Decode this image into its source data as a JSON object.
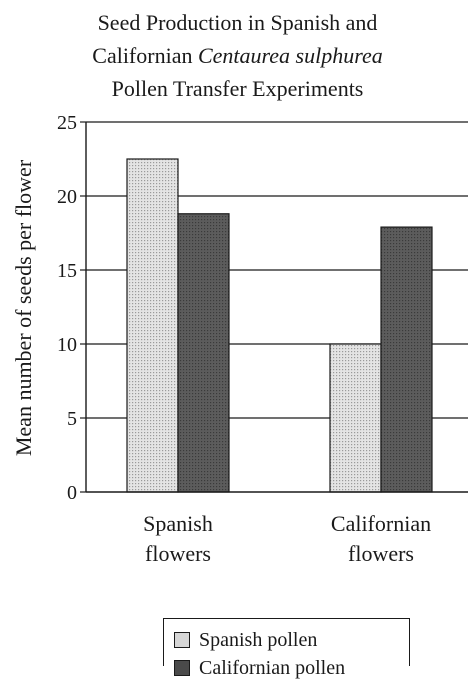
{
  "title": {
    "line1": "Seed Production in Spanish and",
    "line2_prefix": "Californian ",
    "line2_italic": "Centaurea sulphurea",
    "line3": "Pollen Transfer Experiments"
  },
  "chart_data": {
    "type": "bar",
    "title": "Seed Production in Spanish and Californian Centaurea sulphurea Pollen Transfer Experiments",
    "xlabel": "",
    "ylabel": "Mean number of seeds per flower",
    "categories": [
      [
        "Spanish",
        "flowers"
      ],
      [
        "Californian",
        "flowers"
      ]
    ],
    "series": [
      {
        "name": "Spanish pollen",
        "values": [
          22.5,
          10
        ],
        "color": "#d4d4d4"
      },
      {
        "name": "Californian pollen",
        "values": [
          18.8,
          17.9
        ],
        "color": "#5a5a5a"
      }
    ],
    "ylim": [
      0,
      25
    ],
    "yticks": [
      0,
      5,
      10,
      15,
      20,
      25
    ],
    "grid": true,
    "legend_position": "bottom"
  }
}
